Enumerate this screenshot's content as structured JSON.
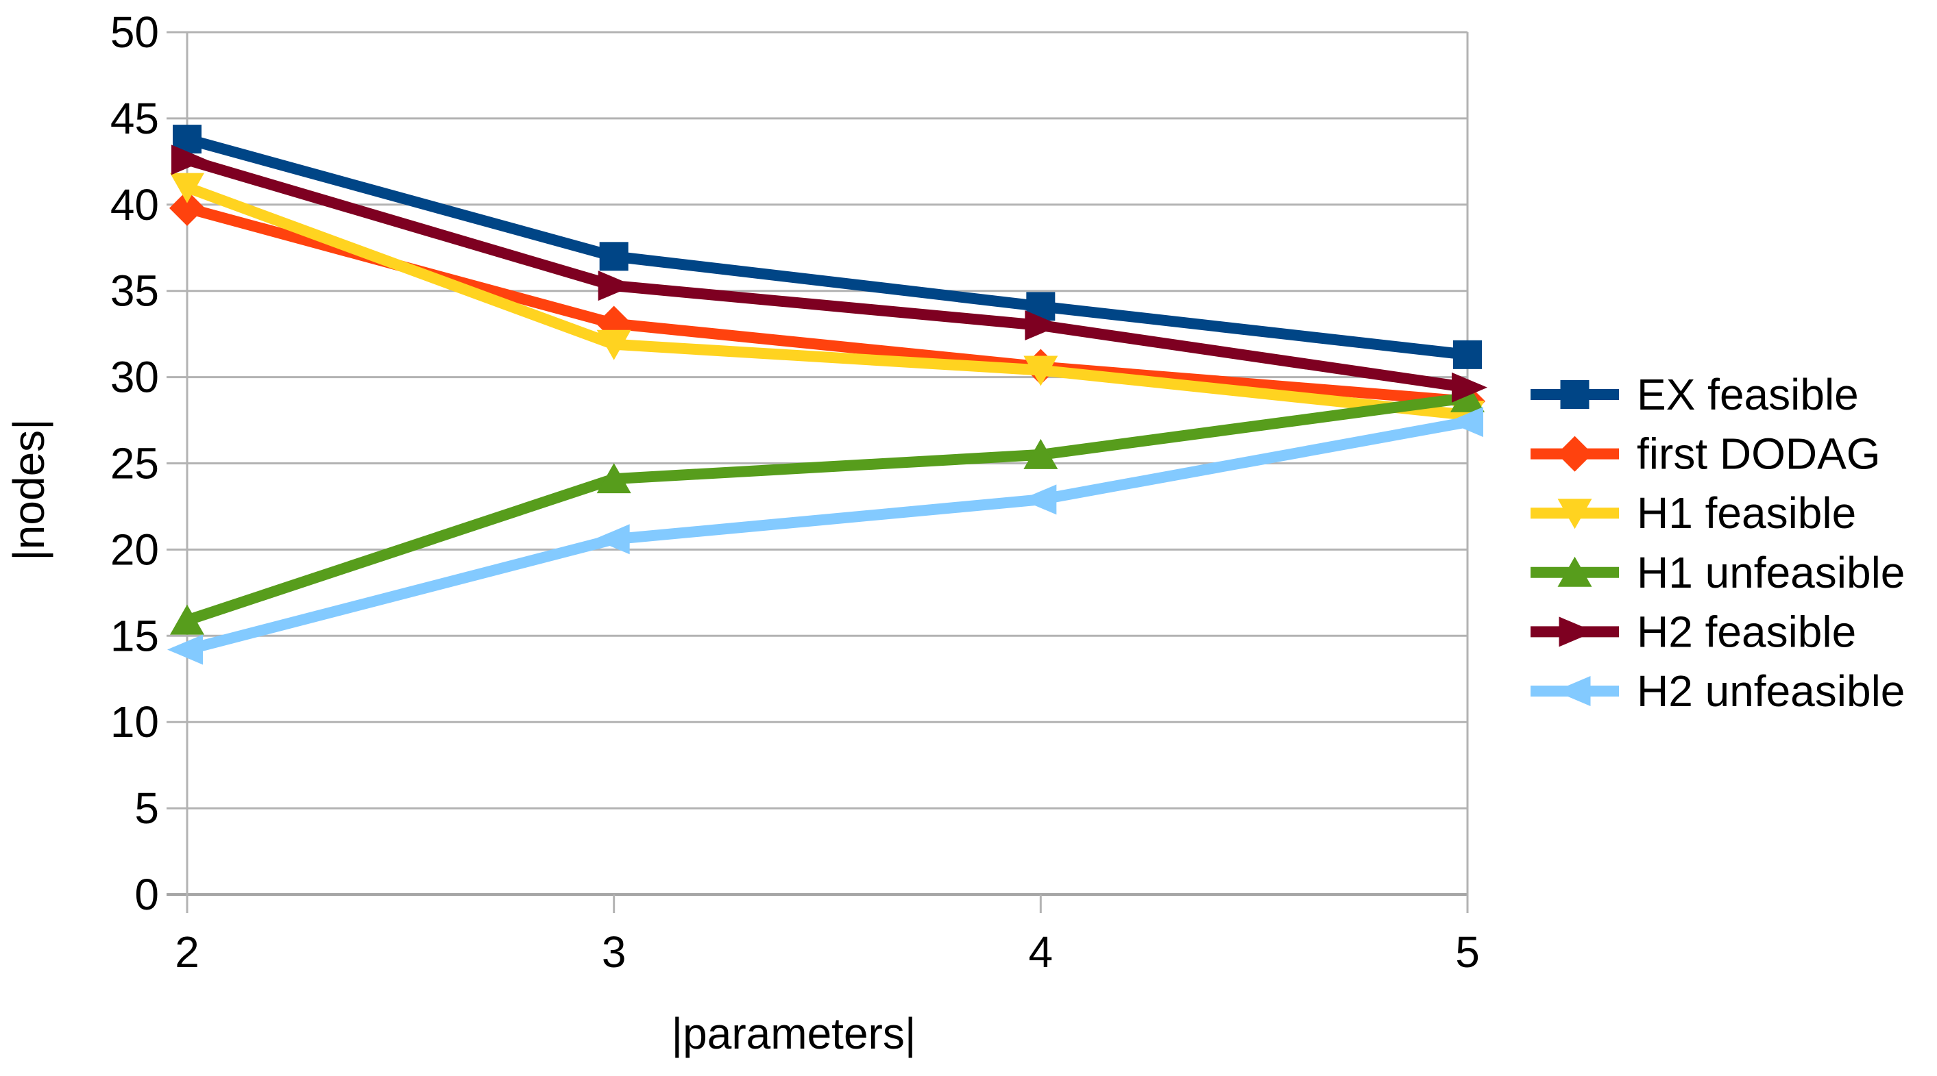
{
  "chart_data": {
    "type": "line",
    "title": "",
    "xlabel": "|parameters|",
    "ylabel": "|nodes|",
    "x": [
      2,
      3,
      4,
      5
    ],
    "x_tick_labels": [
      "2",
      "3",
      "4",
      "5"
    ],
    "y_ticks": [
      0,
      5,
      10,
      15,
      20,
      25,
      30,
      35,
      40,
      45,
      50
    ],
    "ylim": [
      0,
      50
    ],
    "grid": "horizontal",
    "legend_position": "right",
    "series": [
      {
        "name": "EX feasible",
        "color": "#004586",
        "marker": "square",
        "values": [
          43.8,
          37.0,
          34.1,
          31.3
        ]
      },
      {
        "name": "first DODAG",
        "color": "#ff420e",
        "marker": "diamond",
        "values": [
          39.8,
          33.1,
          30.6,
          28.6
        ]
      },
      {
        "name": "H1 feasible",
        "color": "#ffd320",
        "marker": "triangle-down",
        "values": [
          41.0,
          31.9,
          30.4,
          27.8
        ]
      },
      {
        "name": "H1 unfeasible",
        "color": "#579d1c",
        "marker": "triangle-up",
        "values": [
          15.9,
          24.1,
          25.5,
          28.8
        ]
      },
      {
        "name": "H2 feasible",
        "color": "#7e0021",
        "marker": "triangle-right",
        "values": [
          42.6,
          35.3,
          33.0,
          29.4
        ]
      },
      {
        "name": "H2 unfeasible",
        "color": "#83caff",
        "marker": "triangle-left",
        "values": [
          14.2,
          20.6,
          22.9,
          27.4
        ]
      }
    ],
    "colors": {
      "grid": "#b3b3b3",
      "axis": "#a6a6a6",
      "text": "#000000",
      "background": "#ffffff"
    }
  }
}
